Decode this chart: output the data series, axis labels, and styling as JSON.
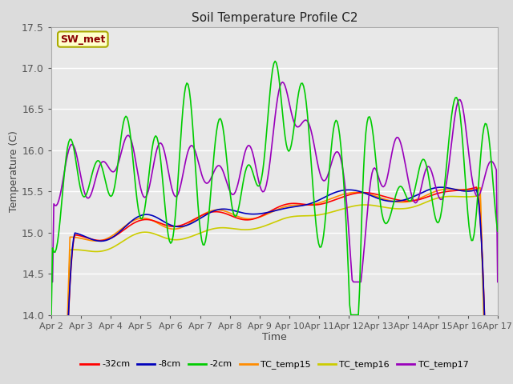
{
  "title": "Soil Temperature Profile C2",
  "xlabel": "Time",
  "ylabel": "Temperature (C)",
  "ylim": [
    14.0,
    17.5
  ],
  "yticks": [
    14.0,
    14.5,
    15.0,
    15.5,
    16.0,
    16.5,
    17.0,
    17.5
  ],
  "xtick_labels": [
    "Apr 2",
    "Apr 3",
    "Apr 4",
    "Apr 5",
    "Apr 6",
    "Apr 7",
    "Apr 8",
    "Apr 9",
    "Apr 10",
    "Apr 11",
    "Apr 12",
    "Apr 13",
    "Apr 14",
    "Apr 15",
    "Apr 16",
    "Apr 17"
  ],
  "annotation_text": "SW_met",
  "annotation_color": "#8B0000",
  "annotation_bg": "#FFFFCC",
  "annotation_edge": "#AAAA00",
  "fig_bg": "#DCDCDC",
  "plot_bg": "#E8E8E8",
  "grid_color": "#FFFFFF",
  "series_colors": {
    "-32cm": "#FF0000",
    "-8cm": "#0000BB",
    "-2cm": "#00CC00",
    "TC_temp15": "#FF8C00",
    "TC_temp16": "#CCCC00",
    "TC_temp17": "#9900BB"
  },
  "lw": 1.2
}
